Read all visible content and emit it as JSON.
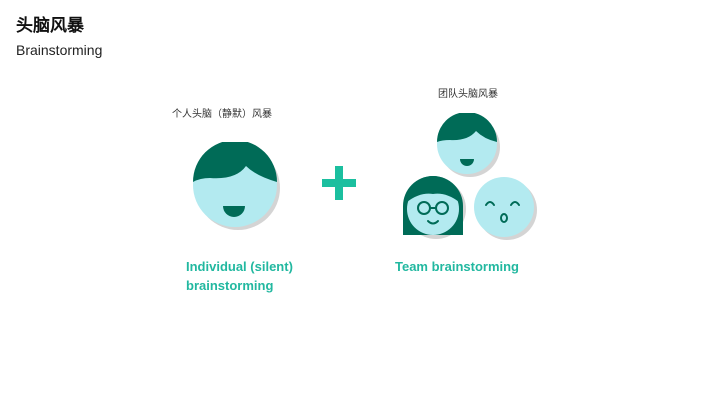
{
  "title": {
    "chinese": "头脑风暴",
    "english": "Brainstorming"
  },
  "individual": {
    "caption": "个人头脑（静默）风暴",
    "label_line1": "Individual (silent)",
    "label_line2": "brainstorming"
  },
  "team": {
    "caption": "团队头脑风暴",
    "label": "Team brainstorming"
  },
  "colors": {
    "face": "#b3eaf0",
    "hair": "#006b57",
    "shadow": "#d4d4d4",
    "accent": "#22b8a0",
    "plus": "#1bbf9f"
  }
}
